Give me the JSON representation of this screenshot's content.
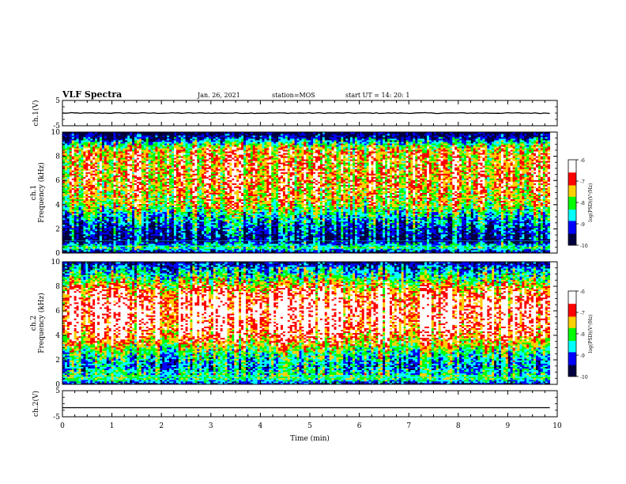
{
  "header": {
    "title": "VLF Spectra",
    "date": "Jan. 26, 2021",
    "station": "station=MOS",
    "start": "start  UT  =   14: 20: 1"
  },
  "colors": {
    "spectrum": [
      "#ffffff",
      "#ff0000",
      "#ffd000",
      "#00ff00",
      "#00ffff",
      "#0000ff",
      "#000040"
    ],
    "colorbar": [
      "#ffffff",
      "#ff0000",
      "#ffff00",
      "#00ff00",
      "#00ffff",
      "#0000ff",
      "#000000"
    ]
  },
  "chart_data": [
    {
      "type": "line",
      "panel": "waveform-ch1",
      "ylabel": "ch.1(V)",
      "ylim": [
        -5,
        5
      ],
      "yticks": [
        "5",
        "-5"
      ],
      "series": [
        {
          "x": [
            0,
            9.85
          ],
          "values": [
            0,
            0
          ]
        }
      ]
    },
    {
      "type": "heatmap",
      "panel": "spectrogram-ch1",
      "ylabel": "ch.1\nFrequency (kHz)",
      "ylim": [
        0,
        10
      ],
      "yticks": [
        "0",
        "2",
        "4",
        "6",
        "8",
        "10"
      ],
      "x_extent": [
        0,
        9.85
      ],
      "colorbar": {
        "label": "log(PSD)(V²/Hz)",
        "range": [
          -10,
          -6
        ],
        "ticks": [
          "-6",
          "-7",
          "-8",
          "-9",
          "-10"
        ]
      },
      "level_profile": [
        {
          "freq_khz": 0.0,
          "log_psd": -9.8
        },
        {
          "freq_khz": 0.2,
          "log_psd": -9.0
        },
        {
          "freq_khz": 0.5,
          "log_psd": -8.0
        },
        {
          "freq_khz": 1.0,
          "log_psd": -9.5
        },
        {
          "freq_khz": 2.0,
          "log_psd": -9.0
        },
        {
          "freq_khz": 3.0,
          "log_psd": -8.5
        },
        {
          "freq_khz": 4.0,
          "log_psd": -7.5
        },
        {
          "freq_khz": 6.0,
          "log_psd": -7.0
        },
        {
          "freq_khz": 8.5,
          "log_psd": -7.2
        },
        {
          "freq_khz": 9.0,
          "log_psd": -8.0
        },
        {
          "freq_khz": 9.5,
          "log_psd": -9.3
        },
        {
          "freq_khz": 10.0,
          "log_psd": -9.8
        }
      ]
    },
    {
      "type": "heatmap",
      "panel": "spectrogram-ch2",
      "ylabel": "ch.2\nFrequency (kHz)",
      "ylim": [
        0,
        10
      ],
      "yticks": [
        "0",
        "2",
        "4",
        "6",
        "8",
        "10"
      ],
      "x_extent": [
        0,
        9.85
      ],
      "colorbar": {
        "label": "log(PSD)(V²/Hz)",
        "range": [
          -10,
          -6
        ],
        "ticks": [
          "-6",
          "-7",
          "-8",
          "-9",
          "-10"
        ]
      },
      "level_profile": [
        {
          "freq_khz": 0.0,
          "log_psd": -9.5
        },
        {
          "freq_khz": 0.5,
          "log_psd": -8.0
        },
        {
          "freq_khz": 1.5,
          "log_psd": -8.7
        },
        {
          "freq_khz": 2.5,
          "log_psd": -8.2
        },
        {
          "freq_khz": 3.5,
          "log_psd": -7.2
        },
        {
          "freq_khz": 4.5,
          "log_psd": -6.5
        },
        {
          "freq_khz": 6.0,
          "log_psd": -6.3
        },
        {
          "freq_khz": 7.5,
          "log_psd": -6.7
        },
        {
          "freq_khz": 8.5,
          "log_psd": -7.8
        },
        {
          "freq_khz": 9.5,
          "log_psd": -8.8
        },
        {
          "freq_khz": 10.0,
          "log_psd": -9.5
        }
      ]
    },
    {
      "type": "line",
      "panel": "waveform-ch2",
      "ylabel": "ch.2(V)",
      "ylim": [
        -5,
        5
      ],
      "yticks": [
        "5",
        "-5"
      ],
      "xlabel": "Time  (min)",
      "xlim": [
        0,
        10
      ],
      "xticks": [
        "0",
        "1",
        "2",
        "3",
        "4",
        "5",
        "6",
        "7",
        "8",
        "9",
        "10"
      ],
      "series": [
        {
          "x": [
            0,
            9.85
          ],
          "values": [
            -1.5,
            -1.5
          ]
        }
      ]
    }
  ]
}
